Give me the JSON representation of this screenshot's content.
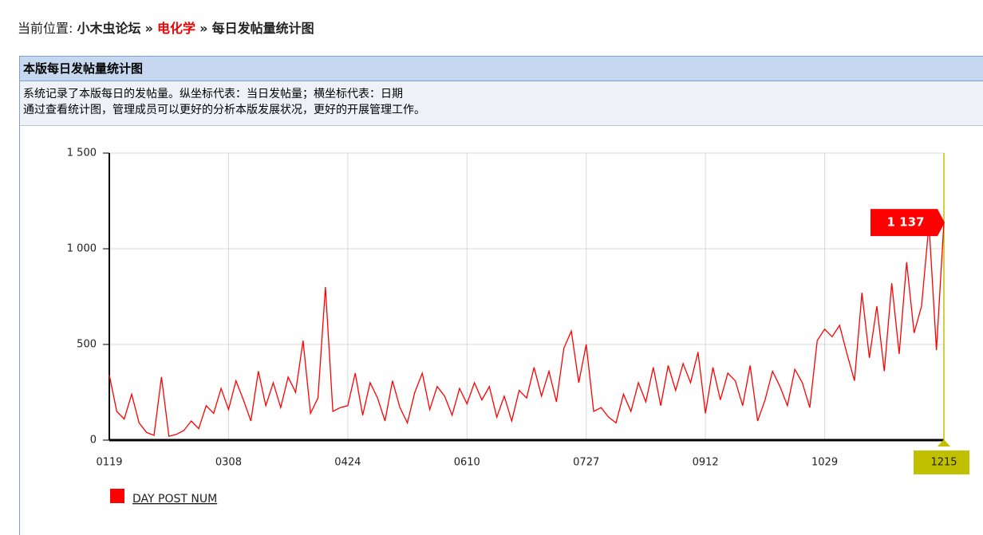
{
  "breadcrumb": {
    "prefix": "当前位置:",
    "items": [
      "小木虫论坛",
      "电化学",
      "每日发帖量统计图"
    ],
    "separator": "»"
  },
  "panel": {
    "title": "本版每日发帖量统计图",
    "description": [
      "系统记录了本版每日的发帖量。纵坐标代表：当日发帖量；横坐标代表：日期",
      "通过查看统计图，管理成员可以更好的分析本版发展状况，更好的开展管理工作。"
    ]
  },
  "chart_data": {
    "type": "line",
    "categories": [
      "0119",
      null,
      null,
      null,
      null,
      null,
      null,
      null,
      null,
      null,
      null,
      null,
      null,
      null,
      null,
      null,
      "0308",
      null,
      null,
      null,
      null,
      null,
      null,
      null,
      null,
      null,
      null,
      null,
      null,
      null,
      null,
      null,
      "0424",
      null,
      null,
      null,
      null,
      null,
      null,
      null,
      null,
      null,
      null,
      null,
      null,
      null,
      null,
      null,
      "0610",
      null,
      null,
      null,
      null,
      null,
      null,
      null,
      null,
      null,
      null,
      null,
      null,
      null,
      null,
      null,
      "0727",
      null,
      null,
      null,
      null,
      null,
      null,
      null,
      null,
      null,
      null,
      null,
      null,
      null,
      null,
      null,
      "0912",
      null,
      null,
      null,
      null,
      null,
      null,
      null,
      null,
      null,
      null,
      null,
      null,
      null,
      null,
      null,
      "1029",
      null,
      null,
      null,
      null,
      null,
      null,
      null,
      null,
      null,
      null,
      null,
      null,
      null,
      null,
      null,
      "1215"
    ],
    "series": [
      {
        "name": "DAY POST NUM",
        "color": "#ff0000",
        "values": [
          340,
          150,
          110,
          240,
          90,
          40,
          25,
          330,
          20,
          30,
          50,
          100,
          60,
          180,
          140,
          270,
          160,
          310,
          210,
          100,
          360,
          180,
          300,
          170,
          330,
          250,
          520,
          140,
          220,
          800,
          150,
          170,
          180,
          350,
          130,
          300,
          220,
          100,
          310,
          170,
          90,
          250,
          350,
          160,
          280,
          230,
          130,
          270,
          190,
          300,
          210,
          280,
          120,
          230,
          100,
          260,
          220,
          380,
          230,
          360,
          200,
          480,
          570,
          300,
          500,
          150,
          170,
          120,
          90,
          240,
          150,
          300,
          200,
          380,
          180,
          390,
          260,
          400,
          300,
          460,
          140,
          380,
          210,
          350,
          310,
          180,
          390,
          100,
          210,
          360,
          280,
          180,
          370,
          300,
          170,
          520,
          580,
          540,
          600,
          450,
          310,
          770,
          430,
          700,
          360,
          820,
          450,
          930,
          560,
          700,
          1130,
          470,
          1137
        ]
      }
    ],
    "last_value_label": "1 137",
    "ylim": [
      0,
      1500
    ],
    "yticks": [
      0,
      500,
      {
        "value": 1000,
        "label": "1 000"
      },
      {
        "value": 1500,
        "label": "1 500"
      }
    ],
    "grid": true
  }
}
